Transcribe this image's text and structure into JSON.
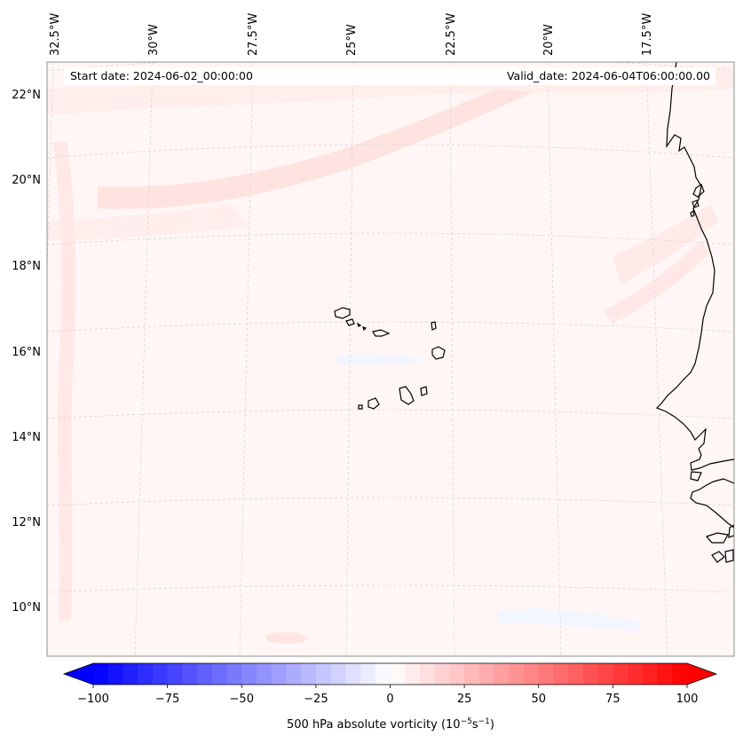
{
  "map": {
    "start_date": "Start date: 2024-06-02_00:00:00",
    "valid_date": "Valid_date: 2024-06-04T06:00:00.00",
    "lon_labels": [
      "32.5°W",
      "30°W",
      "27.5°W",
      "25°W",
      "22.5°W",
      "20°W",
      "17.5°W"
    ],
    "lat_labels": [
      "22°N",
      "20°N",
      "18°N",
      "16°N",
      "14°N",
      "12°N",
      "10°N"
    ],
    "field": "500 hPa absolute vorticity",
    "coastline_color": "#000000"
  },
  "colorbar": {
    "label_main": "500 hPa absolute vorticity (10",
    "label_exp1": "−5",
    "label_mid": "s",
    "label_exp2": "−1",
    "label_end": ")",
    "tick_labels": [
      "−100",
      "−75",
      "−50",
      "−25",
      "0",
      "25",
      "50",
      "75",
      "100"
    ],
    "tick_values": [
      -100,
      -75,
      -50,
      -25,
      0,
      25,
      50,
      75,
      100
    ],
    "min": -100,
    "max": 100,
    "levels": 40,
    "cmap": "bwr",
    "color_low": "#0000ff",
    "color_mid": "#ffffff",
    "color_high": "#ff0000"
  }
}
